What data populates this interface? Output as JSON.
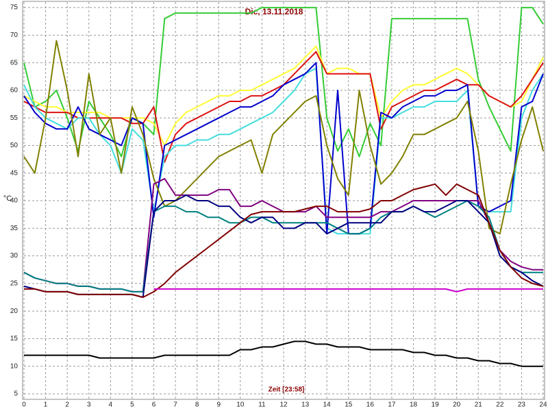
{
  "chart_data": {
    "type": "line",
    "title": "Dic, 13.11.2018",
    "xlabel": "Zeit [23:58]",
    "ylabel": "°C",
    "x": [
      0,
      0.5,
      1,
      1.5,
      2,
      2.5,
      3,
      3.5,
      4,
      4.5,
      5,
      5.5,
      6,
      6.5,
      7,
      7.5,
      8,
      8.5,
      9,
      9.5,
      10,
      10.5,
      11,
      11.5,
      12,
      12.5,
      13,
      13.5,
      14,
      14.5,
      15,
      15.5,
      16,
      16.5,
      17,
      17.5,
      18,
      18.5,
      19,
      19.5,
      20,
      20.5,
      21,
      21.5,
      22,
      22.5,
      23,
      23.5,
      24
    ],
    "xlim": [
      0,
      24
    ],
    "xticks": [
      0,
      1,
      2,
      3,
      4,
      5,
      6,
      7,
      8,
      9,
      10,
      11,
      12,
      13,
      14,
      15,
      16,
      17,
      18,
      19,
      20,
      21,
      22,
      23,
      24
    ],
    "ylim": [
      4,
      76
    ],
    "yticks": [
      5,
      10,
      15,
      20,
      25,
      30,
      35,
      40,
      45,
      50,
      55,
      60,
      65,
      70,
      75
    ],
    "grid": true,
    "series": [
      {
        "color": "#33cc33",
        "values": [
          65,
          57,
          58,
          60,
          55,
          49,
          58,
          55,
          52,
          48,
          55,
          54,
          52,
          73,
          74,
          74,
          74,
          74,
          74,
          74,
          74,
          74,
          75,
          75,
          75,
          75,
          75,
          75,
          55,
          49,
          53,
          48,
          54,
          50,
          73,
          73,
          73,
          73,
          73,
          73,
          73,
          73,
          62,
          57,
          53,
          49,
          75,
          75,
          72
        ]
      },
      {
        "color": "#ffff33",
        "values": [
          59,
          58,
          57,
          57,
          56,
          56,
          56,
          56,
          55,
          55,
          55,
          55,
          54,
          50,
          54,
          56,
          57,
          58,
          59,
          59,
          60,
          60,
          61,
          62,
          63,
          64,
          66,
          68,
          63,
          64,
          64,
          63,
          63,
          55,
          58,
          60,
          61,
          61,
          62,
          63,
          64,
          63,
          61,
          59,
          58,
          57,
          58,
          62,
          66
        ]
      },
      {
        "color": "#dd1111",
        "values": [
          58,
          57,
          56,
          56,
          56,
          55,
          55,
          55,
          55,
          55,
          54,
          54,
          57,
          47,
          52,
          54,
          55,
          56,
          57,
          58,
          58,
          59,
          59,
          60,
          61,
          63,
          65,
          67,
          63,
          63,
          63,
          63,
          63,
          53,
          57,
          58,
          59,
          60,
          60,
          61,
          62,
          61,
          61,
          59,
          58,
          57,
          59,
          62,
          65
        ]
      },
      {
        "color": "#44dddd",
        "values": [
          61,
          57,
          55,
          54,
          53,
          55,
          55,
          52,
          50,
          45,
          53,
          51,
          38,
          48,
          50,
          50,
          51,
          51,
          52,
          52,
          53,
          54,
          55,
          56,
          58,
          60,
          63,
          64,
          35,
          34,
          34,
          34,
          34,
          55,
          55,
          56,
          57,
          57,
          58,
          58,
          58,
          60,
          39,
          38,
          38,
          38,
          55,
          60,
          63
        ]
      },
      {
        "color": "#0000cc",
        "values": [
          59,
          56,
          54,
          53,
          53,
          57,
          53,
          52,
          51,
          50,
          55,
          54,
          37,
          50,
          51,
          52,
          53,
          54,
          55,
          56,
          57,
          57,
          58,
          59,
          61,
          62,
          63,
          65,
          34,
          60,
          34,
          34,
          35,
          56,
          55,
          57,
          58,
          59,
          59,
          60,
          60,
          61,
          39,
          38,
          39,
          40,
          57,
          58,
          63
        ]
      },
      {
        "color": "#808000",
        "values": [
          48,
          45,
          55,
          69,
          60,
          48,
          63,
          52,
          55,
          45,
          57,
          52,
          44,
          39,
          40,
          42,
          44,
          46,
          48,
          49,
          50,
          51,
          45,
          52,
          54,
          56,
          58,
          59,
          50,
          44,
          41,
          60,
          50,
          43,
          45,
          48,
          52,
          52,
          53,
          54,
          55,
          58,
          49,
          35,
          34,
          43,
          51,
          57,
          49
        ]
      },
      {
        "color": "#800080",
        "values": [
          27,
          26,
          25.5,
          25,
          25,
          24.5,
          24.5,
          24,
          24,
          24,
          23.5,
          23.5,
          43,
          44,
          41,
          41,
          41,
          41,
          42,
          42,
          39,
          39,
          40,
          39,
          38,
          38,
          38,
          39,
          37,
          37,
          37,
          37,
          37,
          38,
          38,
          39,
          40,
          40,
          40,
          40,
          40,
          40,
          40,
          36,
          31,
          29,
          28,
          27.5,
          27.5
        ]
      },
      {
        "color": "#008080",
        "values": [
          27,
          26,
          25.5,
          25,
          25,
          24.5,
          24.5,
          24,
          24,
          24,
          23.5,
          23.5,
          38,
          39,
          39,
          38,
          38,
          37,
          37,
          36,
          36,
          37,
          37,
          36,
          36,
          36,
          36,
          36,
          36,
          35,
          34,
          34,
          35,
          37,
          38,
          38,
          39,
          38,
          37,
          38,
          39,
          40,
          39,
          37,
          31,
          28,
          27,
          27,
          27
        ]
      },
      {
        "color": "#000080",
        "values": [
          24.5,
          24,
          23.5,
          23.5,
          23.5,
          23,
          23,
          23,
          23,
          23,
          23,
          22.5,
          38,
          40,
          40,
          41,
          40,
          40,
          39,
          39,
          37,
          36,
          37,
          37,
          35,
          35,
          36,
          36,
          34,
          35,
          36,
          36,
          36,
          36,
          38,
          38,
          39,
          38,
          38,
          39,
          40,
          40,
          38,
          36,
          30,
          28,
          27,
          25.5,
          24.5
        ]
      },
      {
        "color": "#800000",
        "values": [
          24,
          24,
          23.5,
          23.5,
          23.5,
          23,
          23,
          23,
          23,
          23,
          23,
          22.5,
          23.5,
          25,
          27,
          28.5,
          30,
          31.5,
          33,
          34.5,
          36,
          37.5,
          38,
          38,
          38,
          38,
          38.5,
          39,
          39,
          38,
          38,
          38,
          38.5,
          40,
          40,
          41,
          42,
          42.5,
          43,
          41,
          43,
          42,
          41,
          36,
          31,
          28,
          26,
          25,
          24.5
        ]
      },
      {
        "color": "#cc00cc",
        "values": [
          null,
          null,
          null,
          null,
          null,
          null,
          null,
          null,
          null,
          null,
          null,
          null,
          24,
          24,
          24,
          24,
          24,
          24,
          24,
          24,
          24,
          24,
          24,
          24,
          24,
          24,
          24,
          24,
          24,
          24,
          24,
          24,
          24,
          24,
          24,
          24,
          24,
          24,
          24,
          24,
          23.5,
          24,
          24,
          24,
          24,
          24,
          24,
          24,
          24
        ]
      },
      {
        "color": "#000000",
        "values": [
          12,
          12,
          12,
          12,
          12,
          12,
          12,
          11.5,
          11.5,
          11.5,
          11.5,
          11.5,
          11.5,
          12,
          12,
          12,
          12,
          12,
          12,
          12,
          13,
          13,
          13.5,
          13.5,
          14,
          14.5,
          14.5,
          14,
          14,
          13.5,
          13.5,
          13.5,
          13,
          13,
          13,
          13,
          12.5,
          12.5,
          12,
          12,
          11.5,
          11.5,
          11,
          11,
          10.5,
          10.5,
          10,
          10,
          10
        ]
      }
    ]
  }
}
